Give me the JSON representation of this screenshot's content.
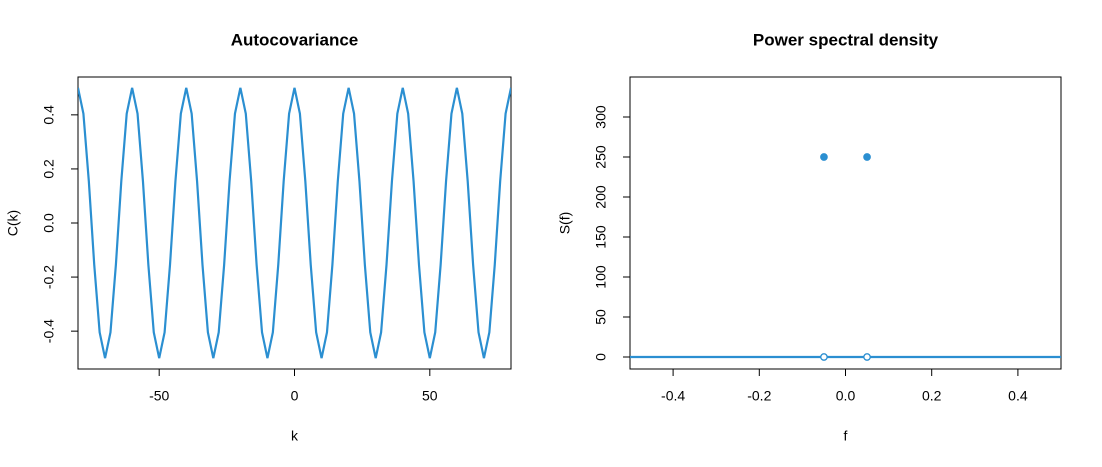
{
  "chart_data": [
    {
      "type": "line",
      "title": "Autocovariance",
      "x_label": "k",
      "y_label": "C(k)",
      "x": [
        -80,
        -78,
        -76,
        -74,
        -72,
        -70,
        -68,
        -66,
        -64,
        -62,
        -60,
        -58,
        -56,
        -54,
        -52,
        -50,
        -48,
        -46,
        -44,
        -42,
        -40,
        -38,
        -36,
        -34,
        -32,
        -30,
        -28,
        -26,
        -24,
        -22,
        -20,
        -18,
        -16,
        -14,
        -12,
        -10,
        -8,
        -6,
        -4,
        -2,
        0,
        2,
        4,
        6,
        8,
        10,
        12,
        14,
        16,
        18,
        20,
        22,
        24,
        26,
        28,
        30,
        32,
        34,
        36,
        38,
        40,
        42,
        44,
        46,
        48,
        50,
        52,
        54,
        56,
        58,
        60,
        62,
        64,
        66,
        68,
        70,
        72,
        74,
        76,
        78,
        80
      ],
      "series": [
        {
          "color": "#2b8fd1",
          "values": [
            0.5,
            0.4045,
            0.1545,
            -0.1545,
            -0.4045,
            -0.5,
            -0.4045,
            -0.1545,
            0.1545,
            0.4045,
            0.5,
            0.4045,
            0.1545,
            -0.1545,
            -0.4045,
            -0.5,
            -0.4045,
            -0.1545,
            0.1545,
            0.4045,
            0.5,
            0.4045,
            0.1545,
            -0.1545,
            -0.4045,
            -0.5,
            -0.4045,
            -0.1545,
            0.1545,
            0.4045,
            0.5,
            0.4045,
            0.1545,
            -0.1545,
            -0.4045,
            -0.5,
            -0.4045,
            -0.1545,
            0.1545,
            0.4045,
            0.5,
            0.4045,
            0.1545,
            -0.1545,
            -0.4045,
            -0.5,
            -0.4045,
            -0.1545,
            0.1545,
            0.4045,
            0.5,
            0.4045,
            0.1545,
            -0.1545,
            -0.4045,
            -0.5,
            -0.4045,
            -0.1545,
            0.1545,
            0.4045,
            0.5,
            0.4045,
            0.1545,
            -0.1545,
            -0.4045,
            -0.5,
            -0.4045,
            -0.1545,
            0.1545,
            0.4045,
            0.5,
            0.4045,
            0.1545,
            -0.1545,
            -0.4045,
            -0.5,
            -0.4045,
            -0.1545,
            0.1545,
            0.4045,
            0.5
          ]
        }
      ],
      "xlim": [
        -80,
        80
      ],
      "xticks": [
        -50,
        0,
        50
      ],
      "ylim": [
        -0.54,
        0.54
      ],
      "yticks": [
        -0.4,
        -0.2,
        {
          "value": 0,
          "label": "0.0"
        },
        0.2,
        0.4
      ]
    },
    {
      "type": "line",
      "title": "Power spectral density",
      "x_label": "f",
      "y_label": "S(f)",
      "series": [
        {
          "color": "#2b8fd1",
          "x": [
            -0.5,
            0.5
          ],
          "values": [
            0,
            0
          ]
        },
        {
          "color": "#2b8fd1",
          "marker": "filled",
          "x": [
            -0.05,
            0.05
          ],
          "values": [
            250,
            250
          ]
        },
        {
          "color": "#2b8fd1",
          "marker": "open",
          "x": [
            -0.05,
            0.05
          ],
          "values": [
            0,
            0
          ]
        }
      ],
      "xlim": [
        -0.5,
        0.5
      ],
      "xticks": [
        -0.4,
        -0.2,
        {
          "value": 0,
          "label": "0.0"
        },
        0.2,
        0.4
      ],
      "ylim": [
        -15,
        350
      ],
      "yticks": [
        0,
        50,
        100,
        150,
        200,
        250,
        300
      ]
    }
  ]
}
